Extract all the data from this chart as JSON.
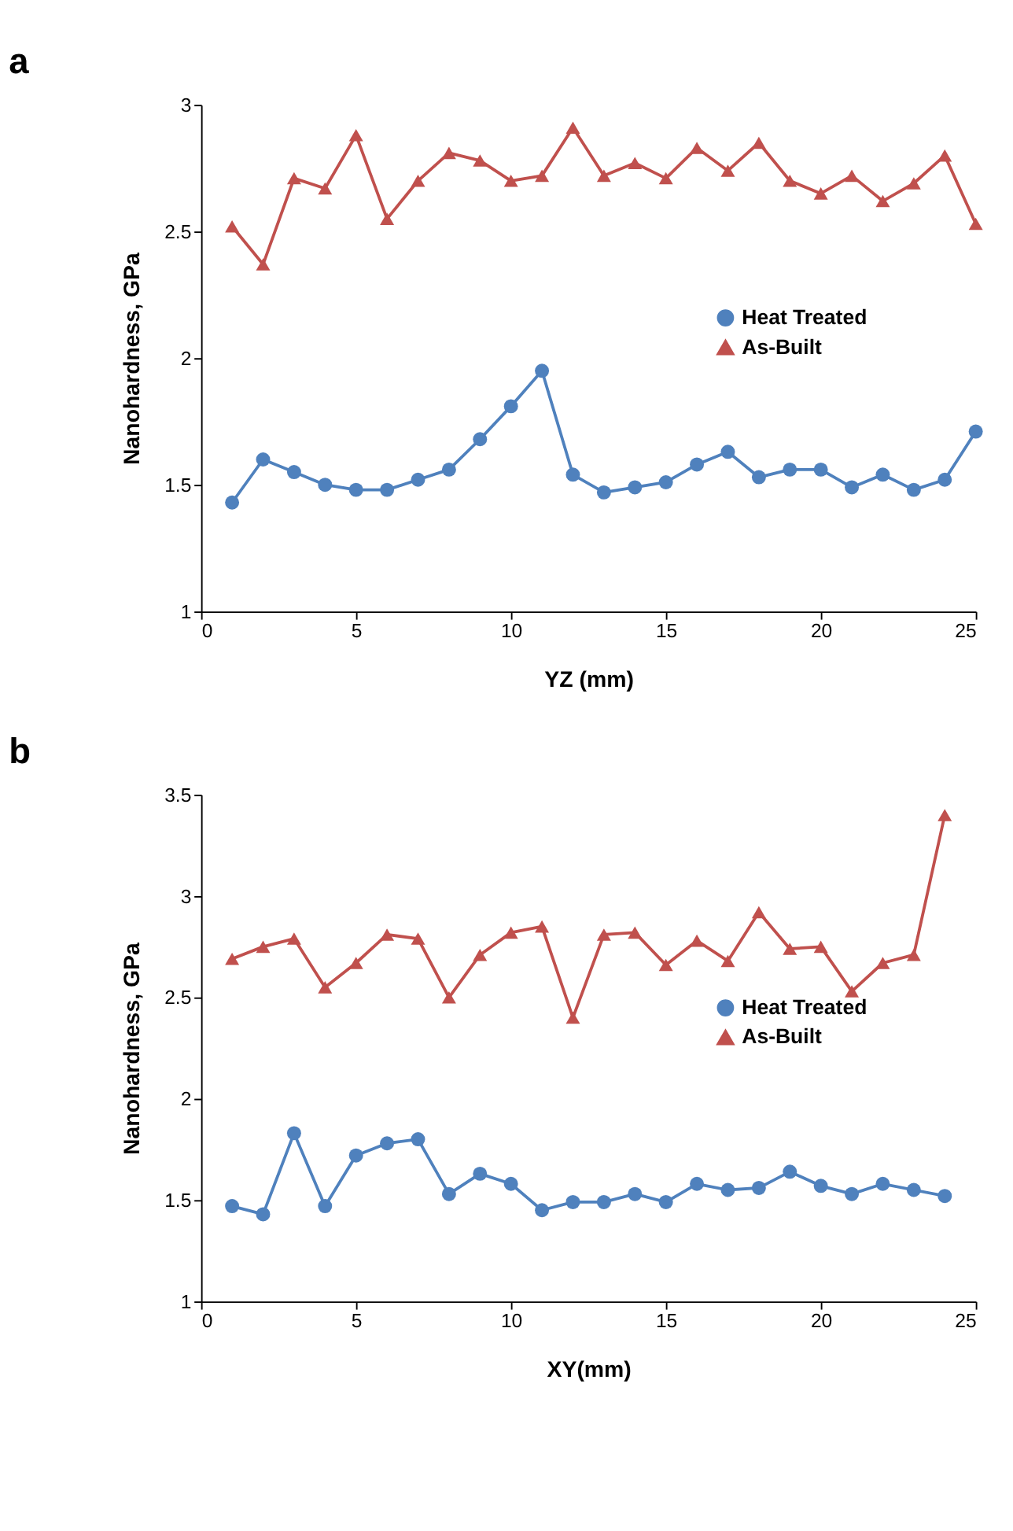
{
  "chart_data": [
    {
      "type": "line",
      "title": "a",
      "xlabel": "YZ (mm)",
      "ylabel": "Nanohardness, GPa",
      "xlim": [
        0,
        25
      ],
      "xticks": [
        0,
        5,
        10,
        15,
        20,
        25
      ],
      "ylim": [
        1,
        3
      ],
      "yticks": [
        1,
        1.5,
        2,
        2.5,
        3
      ],
      "grid": false,
      "legend": "right",
      "x": [
        1,
        2,
        3,
        4,
        5,
        6,
        7,
        8,
        9,
        10,
        11,
        12,
        13,
        14,
        15,
        16,
        17,
        18,
        19,
        20,
        21,
        22,
        23,
        24,
        25
      ],
      "series": [
        {
          "name": "Heat Treated",
          "color": "#4f81bd",
          "marker": "circle",
          "values": [
            1.43,
            1.6,
            1.55,
            1.5,
            1.48,
            1.48,
            1.52,
            1.56,
            1.68,
            1.81,
            1.95,
            1.54,
            1.47,
            1.49,
            1.51,
            1.58,
            1.63,
            1.53,
            1.56,
            1.56,
            1.49,
            1.54,
            1.48,
            1.52,
            1.71
          ]
        },
        {
          "name": "As-Built",
          "color": "#c0504d",
          "marker": "triangle",
          "values": [
            2.52,
            2.37,
            2.71,
            2.67,
            2.88,
            2.55,
            2.7,
            2.81,
            2.78,
            2.7,
            2.72,
            2.91,
            2.72,
            2.77,
            2.71,
            2.83,
            2.74,
            2.85,
            2.7,
            2.65,
            2.72,
            2.62,
            2.69,
            2.8,
            2.53
          ]
        }
      ]
    },
    {
      "type": "line",
      "title": "b",
      "xlabel": "XY(mm)",
      "ylabel": "Nanohardness, GPa",
      "xlim": [
        0,
        25
      ],
      "xticks": [
        0,
        5,
        10,
        15,
        20,
        25
      ],
      "ylim": [
        1,
        3.5
      ],
      "yticks": [
        1,
        1.5,
        2,
        2.5,
        3,
        3.5
      ],
      "grid": false,
      "legend": "right",
      "x": [
        1,
        2,
        3,
        4,
        5,
        6,
        7,
        8,
        9,
        10,
        11,
        12,
        13,
        14,
        15,
        16,
        17,
        18,
        19,
        20,
        21,
        22,
        23,
        24
      ],
      "series": [
        {
          "name": "Heat Treated",
          "color": "#4f81bd",
          "marker": "circle",
          "values": [
            1.47,
            1.43,
            1.83,
            1.47,
            1.72,
            1.78,
            1.8,
            1.53,
            1.63,
            1.58,
            1.45,
            1.49,
            1.49,
            1.53,
            1.49,
            1.58,
            1.55,
            1.56,
            1.64,
            1.57,
            1.53,
            1.58,
            1.55,
            1.52
          ]
        },
        {
          "name": "As-Built",
          "color": "#c0504d",
          "marker": "triangle",
          "values": [
            2.69,
            2.75,
            2.79,
            2.55,
            2.67,
            2.81,
            2.79,
            2.5,
            2.71,
            2.82,
            2.85,
            2.4,
            2.81,
            2.82,
            2.66,
            2.78,
            2.68,
            2.92,
            2.74,
            2.75,
            2.53,
            2.67,
            2.71,
            3.4
          ]
        }
      ]
    }
  ]
}
